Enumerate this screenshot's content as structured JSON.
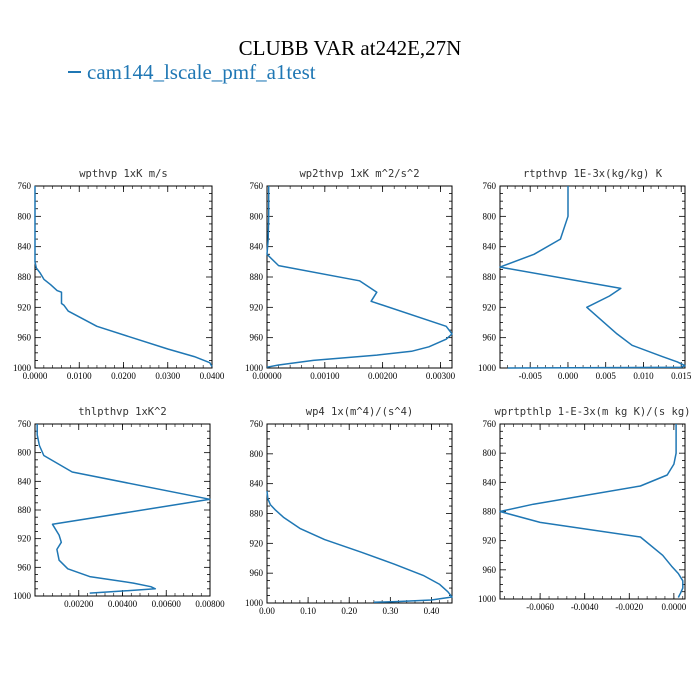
{
  "title": "CLUBB VAR at242E,27N",
  "legend": {
    "series_name": "cam144_lscale_pmf_a1test",
    "color": "#1f77b4"
  },
  "chart_data": [
    {
      "type": "line",
      "title": "wpthvp  1xK m/s",
      "xlim": [
        0,
        0.04
      ],
      "ylim": [
        760,
        1000
      ],
      "y_inverted": true,
      "xticks": [
        0,
        0.01,
        0.02,
        0.03,
        0.04
      ],
      "xtick_labels": [
        "0.0000",
        "0.0100",
        "0.0200",
        "0.0300",
        "0.0400"
      ],
      "yticks": [
        760,
        800,
        840,
        880,
        920,
        960,
        1000
      ],
      "series": [
        {
          "color": "#1f77b4",
          "x": [
            0,
            0,
            0,
            0,
            0.0003,
            0.0012,
            0.002,
            0.0035,
            0.005,
            0.006,
            0.006,
            0.0065,
            0.0075,
            0.014,
            0.022,
            0.03,
            0.036,
            0.0395,
            0.04
          ],
          "y": [
            760,
            800,
            840,
            860,
            868,
            875,
            883,
            890,
            898,
            900,
            915,
            917,
            925,
            945,
            960,
            975,
            985,
            993,
            998
          ]
        }
      ]
    },
    {
      "type": "line",
      "title": "wp2thvp  1xK m^2/s^2",
      "xlim": [
        0,
        0.0032
      ],
      "ylim": [
        760,
        1000
      ],
      "y_inverted": true,
      "xticks": [
        0,
        0.001,
        0.002,
        0.003
      ],
      "xtick_labels": [
        "0.00000",
        "0.00100",
        "0.00200",
        "0.00300"
      ],
      "yticks": [
        760,
        800,
        840,
        880,
        920,
        960,
        1000
      ],
      "series": [
        {
          "color": "#1f77b4",
          "x": [
            3e-05,
            3e-05,
            2e-05,
            1e-05,
            0,
            0.0002,
            0.0016,
            0.0019,
            0.0018,
            0.0031,
            0.0032,
            0.0031,
            0.0028,
            0.0025,
            0.0019,
            0.0008,
            0.0002,
            0
          ],
          "y": [
            760,
            800,
            830,
            840,
            850,
            865,
            885,
            900,
            912,
            945,
            955,
            962,
            972,
            978,
            983,
            990,
            996,
            999
          ]
        }
      ]
    },
    {
      "type": "line",
      "title": "rtpthvp  1E-3x(kg/kg) K",
      "xlim": [
        -0.009,
        0.0155
      ],
      "ylim": [
        760,
        1000
      ],
      "y_inverted": true,
      "xticks": [
        -0.005,
        0,
        0.005,
        0.01,
        0.015
      ],
      "xtick_labels": [
        "-0.005",
        "0.000",
        "0.005",
        "0.010",
        "0.015"
      ],
      "yticks": [
        760,
        800,
        840,
        880,
        920,
        960,
        1000
      ],
      "series": [
        {
          "color": "#1f77b4",
          "x": [
            0,
            0,
            -0.001,
            -0.0045,
            -0.009,
            0.007,
            0.0055,
            0.0025,
            0.0065,
            0.0085,
            0.0125,
            0.0145,
            0.0155,
            0.015,
            0.005,
            -0.008
          ],
          "y": [
            760,
            800,
            830,
            850,
            867,
            895,
            905,
            920,
            955,
            970,
            985,
            992,
            997,
            999,
            999.5,
            1000
          ]
        }
      ]
    },
    {
      "type": "line",
      "title": "thlpthvp  1xK^2",
      "xlim": [
        0,
        0.008
      ],
      "ylim": [
        760,
        1000
      ],
      "y_inverted": true,
      "xticks": [
        0.002,
        0.004,
        0.006,
        0.008
      ],
      "xtick_labels": [
        "0.00200",
        "0.00400",
        "0.00600",
        "0.00800"
      ],
      "yticks": [
        760,
        800,
        840,
        880,
        920,
        960,
        1000
      ],
      "series": [
        {
          "color": "#1f77b4",
          "x": [
            0.0001,
            0.0001,
            0.0002,
            0.0004,
            0.0017,
            0.008,
            0.0008,
            0.0011,
            0.0012,
            0.001,
            0.0011,
            0.0015,
            0.0025,
            0.0045,
            0.0053,
            0.0055,
            0.004,
            0.0025
          ],
          "y": [
            760,
            775,
            790,
            804,
            827,
            865,
            900,
            915,
            925,
            935,
            950,
            962,
            973,
            982,
            987,
            990,
            993,
            996
          ]
        }
      ]
    },
    {
      "type": "line",
      "title": "wp4  1x(m^4)/(s^4)",
      "xlim": [
        0,
        0.45
      ],
      "ylim": [
        760,
        1000
      ],
      "y_inverted": true,
      "xticks": [
        0,
        0.1,
        0.2,
        0.3,
        0.4
      ],
      "xtick_labels": [
        "0.00",
        "0.10",
        "0.20",
        "0.30",
        "0.40"
      ],
      "yticks": [
        760,
        800,
        840,
        880,
        920,
        960,
        1000
      ],
      "series": [
        {
          "color": "#1f77b4",
          "x": [
            0,
            0.002,
            0.008,
            0.02,
            0.04,
            0.08,
            0.14,
            0.23,
            0.31,
            0.38,
            0.42,
            0.44,
            0.45,
            0.4,
            0.32,
            0.26
          ],
          "y": [
            850,
            860,
            868,
            875,
            885,
            900,
            915,
            932,
            948,
            963,
            975,
            985,
            992,
            996,
            998,
            999
          ]
        }
      ]
    },
    {
      "type": "line",
      "title": "wprtpthlp  1-E-3x(m kg K)/(s kg)",
      "xlim": [
        -0.0078,
        0.0005
      ],
      "ylim": [
        760,
        1000
      ],
      "y_inverted": true,
      "xticks": [
        -0.006,
        -0.004,
        -0.002,
        0
      ],
      "xtick_labels": [
        "-0.0060",
        "-0.0040",
        "-0.0020",
        "0.0000"
      ],
      "yticks": [
        760,
        800,
        840,
        880,
        920,
        960,
        1000
      ],
      "series": [
        {
          "color": "#1f77b4",
          "x": [
            0.0001,
            0.0001,
            0,
            -0.0003,
            -0.0015,
            -0.0063,
            -0.0078,
            -0.006,
            -0.0015,
            -0.0005,
            -0.0001,
            0.0002,
            0.0004,
            0.0004,
            0.0003,
            0.0002
          ],
          "y": [
            760,
            800,
            815,
            830,
            845,
            870,
            880,
            895,
            915,
            940,
            955,
            965,
            975,
            985,
            992,
            998
          ]
        }
      ]
    }
  ]
}
